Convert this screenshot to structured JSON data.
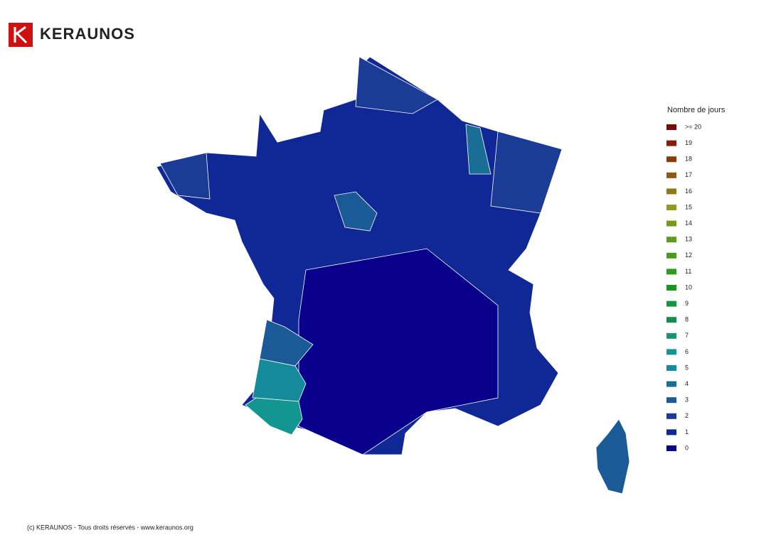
{
  "header": {
    "brand": "KERAUNOS"
  },
  "legend": {
    "title": "Nombre de jours",
    "items": [
      {
        "label": ">= 20",
        "color": "#7a0a0a"
      },
      {
        "label": "19",
        "color": "#8b1a0a"
      },
      {
        "label": "18",
        "color": "#8b3a0a"
      },
      {
        "label": "17",
        "color": "#8b5a14"
      },
      {
        "label": "16",
        "color": "#8b7a1a"
      },
      {
        "label": "15",
        "color": "#8f9a1e"
      },
      {
        "label": "14",
        "color": "#7a9a1e"
      },
      {
        "label": "13",
        "color": "#5f9a1e"
      },
      {
        "label": "12",
        "color": "#4a9a1e"
      },
      {
        "label": "11",
        "color": "#2e9a1e"
      },
      {
        "label": "10",
        "color": "#1a961e"
      },
      {
        "label": "9",
        "color": "#149640"
      },
      {
        "label": "8",
        "color": "#148c50"
      },
      {
        "label": "7",
        "color": "#189270"
      },
      {
        "label": "6",
        "color": "#149690"
      },
      {
        "label": "5",
        "color": "#148a9a"
      },
      {
        "label": "4",
        "color": "#1a6e96"
      },
      {
        "label": "3",
        "color": "#1a5a96"
      },
      {
        "label": "2",
        "color": "#1a3c96"
      },
      {
        "label": "1",
        "color": "#102896"
      },
      {
        "label": "0",
        "color": "#08008c"
      }
    ]
  },
  "map": {
    "areas": [
      1,
      0,
      2,
      2,
      2,
      6,
      5,
      3,
      4,
      3,
      3
    ]
  },
  "footer": {
    "text": "(c) KERAUNOS - Tous droits réservés - www.keraunos.org"
  }
}
